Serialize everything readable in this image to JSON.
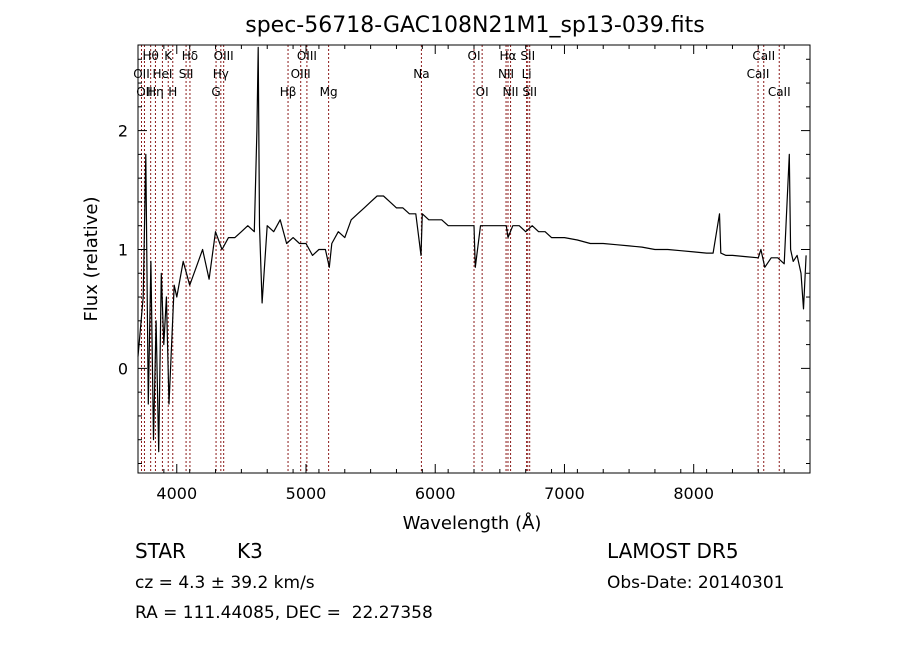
{
  "chart_data": {
    "type": "line",
    "title": "spec-56718-GAC108N21M1_sp13-039.fits",
    "xlabel": "Wavelength (Å)",
    "ylabel": "Flux (relative)",
    "xlim": [
      3700,
      8900
    ],
    "ylim": [
      -0.88,
      2.72
    ],
    "x_ticks": [
      4000,
      5000,
      6000,
      7000,
      8000
    ],
    "x_tick_labels": [
      "4000",
      "5000",
      "6000",
      "7000",
      "8000"
    ],
    "y_ticks": [
      0,
      1,
      2
    ],
    "y_tick_labels": [
      "0",
      "1",
      "2"
    ],
    "grid": false,
    "line_color": "#000000",
    "marker_color": "#8b1a1a",
    "series": [
      {
        "x": [
          3700,
          3740,
          3760,
          3780,
          3800,
          3820,
          3840,
          3860,
          3880,
          3900,
          3920,
          3940,
          3960,
          3980,
          4000,
          4050,
          4100,
          4150,
          4200,
          4250,
          4300,
          4350,
          4400,
          4450,
          4500,
          4550,
          4600,
          4620,
          4630,
          4640,
          4660,
          4700,
          4750,
          4800,
          4850,
          4900,
          4950,
          5000,
          5050,
          5100,
          5150,
          5180,
          5200,
          5250,
          5300,
          5350,
          5400,
          5450,
          5500,
          5550,
          5600,
          5650,
          5700,
          5750,
          5800,
          5850,
          5890,
          5900,
          5950,
          6000,
          6050,
          6100,
          6150,
          6200,
          6250,
          6300,
          6310,
          6350,
          6400,
          6450,
          6500,
          6550,
          6563,
          6600,
          6650,
          6700,
          6750,
          6800,
          6850,
          6900,
          6950,
          7000,
          7100,
          7200,
          7300,
          7400,
          7500,
          7600,
          7700,
          7800,
          7900,
          8000,
          8100,
          8150,
          8200,
          8210,
          8250,
          8300,
          8400,
          8500,
          8520,
          8550,
          8600,
          8650,
          8700,
          8740,
          8750,
          8770,
          8800,
          8830,
          8850,
          8870
        ],
        "y": [
          0.1,
          0.6,
          1.8,
          -0.3,
          0.9,
          -0.6,
          0.4,
          -0.7,
          0.8,
          0.2,
          0.6,
          -0.3,
          0.2,
          0.7,
          0.6,
          0.9,
          0.7,
          0.85,
          1.0,
          0.75,
          1.15,
          1.0,
          1.1,
          1.1,
          1.15,
          1.2,
          1.15,
          2.0,
          2.7,
          1.2,
          0.55,
          1.2,
          1.15,
          1.25,
          1.05,
          1.1,
          1.05,
          1.05,
          0.95,
          1.0,
          1.0,
          0.85,
          1.05,
          1.15,
          1.1,
          1.25,
          1.3,
          1.35,
          1.4,
          1.45,
          1.45,
          1.4,
          1.35,
          1.35,
          1.3,
          1.3,
          0.95,
          1.3,
          1.25,
          1.25,
          1.25,
          1.2,
          1.2,
          1.2,
          1.2,
          1.2,
          0.85,
          1.2,
          1.2,
          1.2,
          1.2,
          1.2,
          1.1,
          1.2,
          1.2,
          1.15,
          1.2,
          1.15,
          1.15,
          1.1,
          1.1,
          1.1,
          1.08,
          1.05,
          1.05,
          1.04,
          1.03,
          1.02,
          1.0,
          1.0,
          0.99,
          0.98,
          0.97,
          0.97,
          1.3,
          0.97,
          0.95,
          0.95,
          0.94,
          0.93,
          1.0,
          0.85,
          0.93,
          0.93,
          0.88,
          1.8,
          1.0,
          0.9,
          0.95,
          0.8,
          0.5,
          0.95
        ]
      }
    ],
    "lines": [
      {
        "wl": 3727,
        "labels": [
          {
            "text": "OII",
            "row": 2
          }
        ]
      },
      {
        "wl": 3750,
        "labels": [
          {
            "text": "OII",
            "row": 3
          }
        ]
      },
      {
        "wl": 3798,
        "labels": [
          {
            "text": "Hθ",
            "row": 1
          }
        ]
      },
      {
        "wl": 3835,
        "labels": [
          {
            "text": "Hη",
            "row": 3
          }
        ]
      },
      {
        "wl": 3889,
        "labels": [
          {
            "text": "HeI",
            "row": 2
          }
        ]
      },
      {
        "wl": 3934,
        "labels": [
          {
            "text": "K",
            "row": 1
          }
        ]
      },
      {
        "wl": 3969,
        "labels": [
          {
            "text": "H",
            "row": 3
          }
        ]
      },
      {
        "wl": 4072,
        "labels": [
          {
            "text": "SII",
            "row": 2
          }
        ]
      },
      {
        "wl": 4102,
        "labels": [
          {
            "text": "Hδ",
            "row": 1
          }
        ]
      },
      {
        "wl": 4304,
        "labels": [
          {
            "text": "G",
            "row": 3
          }
        ]
      },
      {
        "wl": 4341,
        "labels": [
          {
            "text": "Hγ",
            "row": 2
          }
        ]
      },
      {
        "wl": 4363,
        "labels": [
          {
            "text": "OIII",
            "row": 1
          }
        ]
      },
      {
        "wl": 4861,
        "labels": [
          {
            "text": "Hβ",
            "row": 3
          }
        ]
      },
      {
        "wl": 4959,
        "labels": [
          {
            "text": "OIII",
            "row": 2
          }
        ]
      },
      {
        "wl": 5007,
        "labels": [
          {
            "text": "OIII",
            "row": 1
          }
        ]
      },
      {
        "wl": 5175,
        "labels": [
          {
            "text": "Mg",
            "row": 3
          }
        ]
      },
      {
        "wl": 5893,
        "labels": [
          {
            "text": "Na",
            "row": 2
          }
        ]
      },
      {
        "wl": 6300,
        "labels": [
          {
            "text": "OI",
            "row": 1
          }
        ]
      },
      {
        "wl": 6363,
        "labels": [
          {
            "text": "OI",
            "row": 3
          }
        ]
      },
      {
        "wl": 6548,
        "labels": [
          {
            "text": "NII",
            "row": 2
          }
        ]
      },
      {
        "wl": 6563,
        "labels": [
          {
            "text": "Hα",
            "row": 1
          }
        ]
      },
      {
        "wl": 6583,
        "labels": [
          {
            "text": "NII",
            "row": 3
          }
        ]
      },
      {
        "wl": 6707,
        "labels": [
          {
            "text": "Li",
            "row": 2
          }
        ]
      },
      {
        "wl": 6716,
        "labels": [
          {
            "text": "SII",
            "row": 1
          }
        ]
      },
      {
        "wl": 6731,
        "labels": [
          {
            "text": "SII",
            "row": 3
          }
        ]
      },
      {
        "wl": 8498,
        "labels": [
          {
            "text": "CaII",
            "row": 2
          }
        ]
      },
      {
        "wl": 8542,
        "labels": [
          {
            "text": "CaII",
            "row": 1
          }
        ]
      },
      {
        "wl": 8662,
        "labels": [
          {
            "text": "CaII",
            "row": 3
          }
        ]
      }
    ]
  },
  "info": {
    "class": "STAR",
    "subclass": "K3",
    "survey": "LAMOST DR5",
    "cz": "cz = 4.3 ± 39.2 km/s",
    "obs_date": "Obs-Date: 20140301",
    "radec": "RA = 111.44085, DEC =  22.27358"
  }
}
